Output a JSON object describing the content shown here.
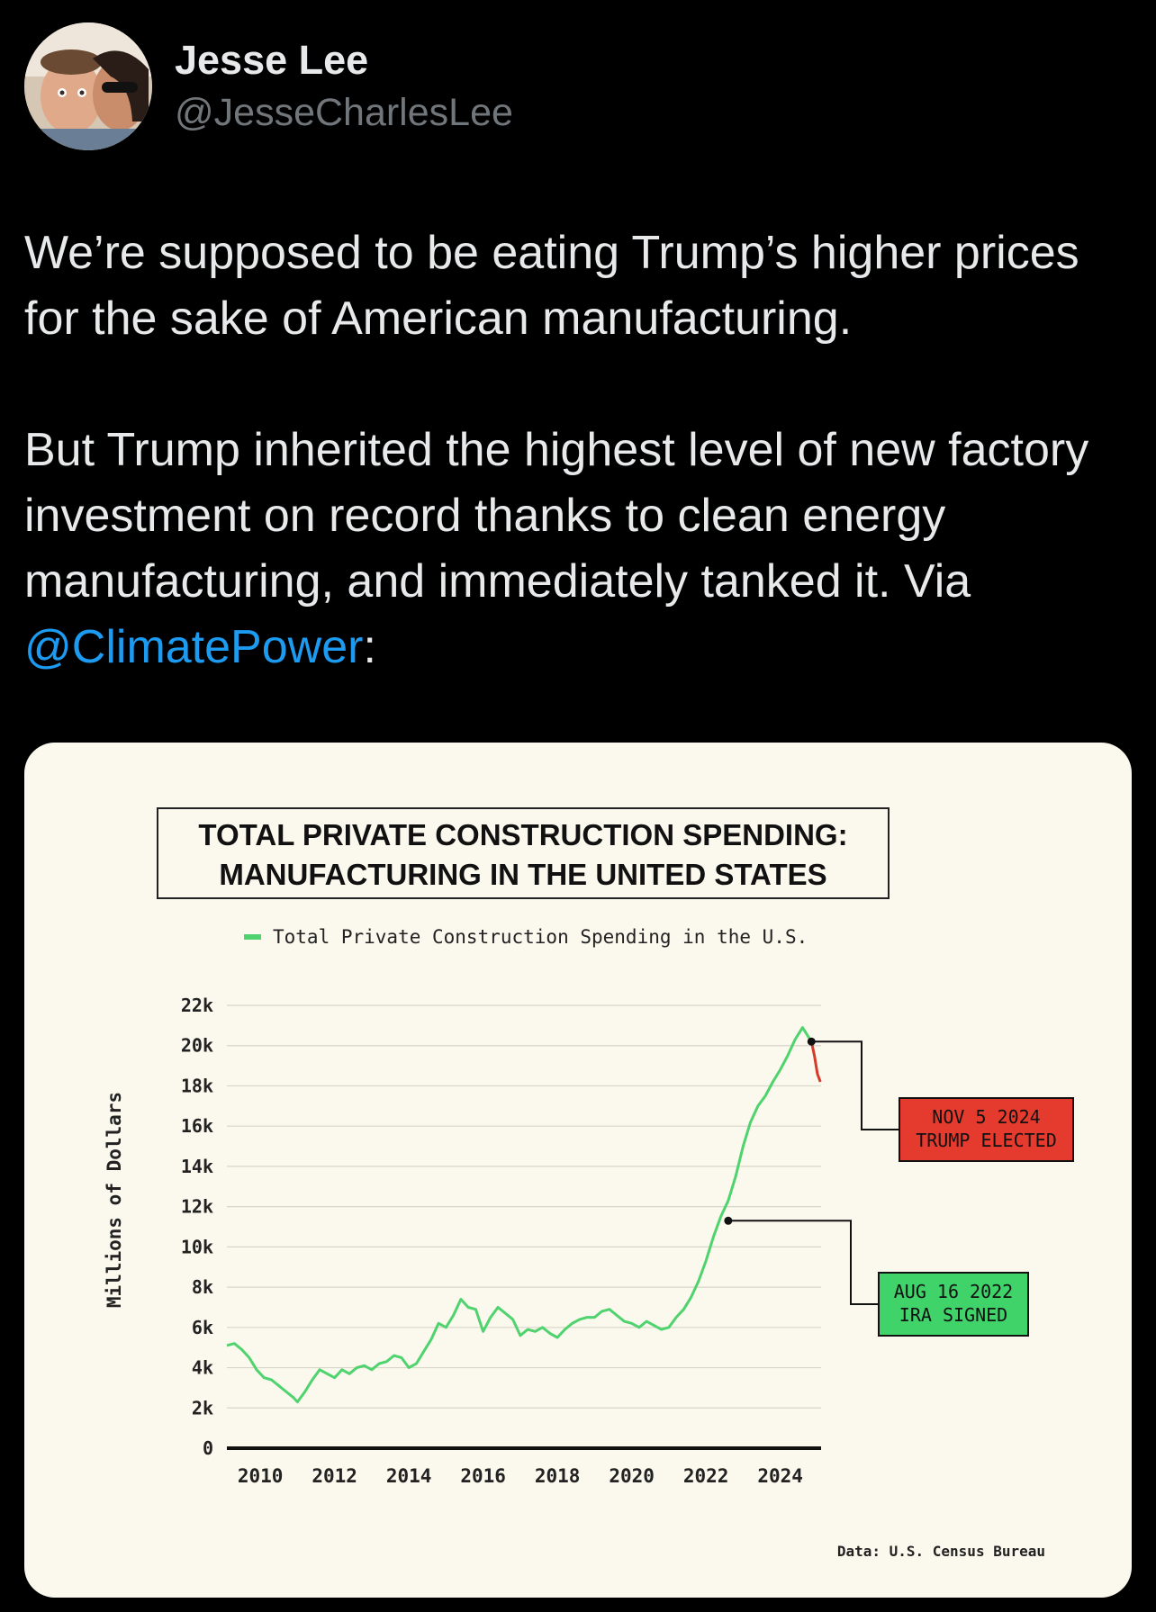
{
  "tweet": {
    "author": {
      "name": "Jesse Lee",
      "handle": "@JesseCharlesLee",
      "avatar_icon": "profile-photo-icon"
    },
    "text": {
      "paragraph1": "We’re supposed to be eating Trump’s higher prices for the sake of American manufacturing.",
      "paragraph2_before": "But Trump inherited the highest level of new factory investment on record thanks to clean energy manufacturing, and immediately tanked it. Via ",
      "mention": "@ClimatePower",
      "paragraph2_after": ":"
    }
  },
  "colors": {
    "background": "#000000",
    "text": "#e7e9ea",
    "muted": "#71767b",
    "link": "#1d9bf0",
    "card_bg": "#fbf8ed",
    "line_green": "#4fd36e",
    "line_red": "#d63a2a",
    "badge_red": "#e53a2e",
    "badge_green": "#3fd36a"
  },
  "chart_data": {
    "type": "line",
    "title_line1": "TOTAL PRIVATE CONSTRUCTION SPENDING:",
    "title_line2": "MANUFACTURING IN THE UNITED STATES",
    "legend": "Total Private Construction Spending in the U.S.",
    "ylabel": "Millions of Dollars",
    "source": "Data: U.S. Census Bureau",
    "y_ticks": [
      {
        "value": 0,
        "label": "0"
      },
      {
        "value": 2000,
        "label": "2k"
      },
      {
        "value": 4000,
        "label": "4k"
      },
      {
        "value": 6000,
        "label": "6k"
      },
      {
        "value": 8000,
        "label": "8k"
      },
      {
        "value": 10000,
        "label": "10k"
      },
      {
        "value": 12000,
        "label": "12k"
      },
      {
        "value": 14000,
        "label": "14k"
      },
      {
        "value": 16000,
        "label": "16k"
      },
      {
        "value": 18000,
        "label": "18k"
      },
      {
        "value": 20000,
        "label": "20k"
      },
      {
        "value": 22000,
        "label": "22k"
      }
    ],
    "x_ticks": [
      {
        "value": 2010,
        "label": "2010"
      },
      {
        "value": 2012,
        "label": "2012"
      },
      {
        "value": 2014,
        "label": "2014"
      },
      {
        "value": 2016,
        "label": "2016"
      },
      {
        "value": 2018,
        "label": "2018"
      },
      {
        "value": 2020,
        "label": "2020"
      },
      {
        "value": 2022,
        "label": "2022"
      },
      {
        "value": 2024,
        "label": "2024"
      }
    ],
    "xlim": [
      2009.1,
      2025.1
    ],
    "ylim": [
      0,
      22000
    ],
    "grid": true,
    "series": [
      {
        "name": "Total Private Construction Spending in the U.S.",
        "color": "green",
        "points": [
          [
            2009.1,
            5100
          ],
          [
            2009.3,
            5200
          ],
          [
            2009.5,
            4900
          ],
          [
            2009.7,
            4500
          ],
          [
            2009.9,
            3900
          ],
          [
            2010.1,
            3500
          ],
          [
            2010.3,
            3400
          ],
          [
            2010.5,
            3100
          ],
          [
            2010.7,
            2800
          ],
          [
            2010.9,
            2500
          ],
          [
            2011.0,
            2300
          ],
          [
            2011.2,
            2800
          ],
          [
            2011.4,
            3400
          ],
          [
            2011.6,
            3900
          ],
          [
            2011.8,
            3700
          ],
          [
            2012.0,
            3500
          ],
          [
            2012.2,
            3900
          ],
          [
            2012.4,
            3700
          ],
          [
            2012.6,
            4000
          ],
          [
            2012.8,
            4100
          ],
          [
            2013.0,
            3900
          ],
          [
            2013.2,
            4200
          ],
          [
            2013.4,
            4300
          ],
          [
            2013.6,
            4600
          ],
          [
            2013.8,
            4500
          ],
          [
            2014.0,
            4000
          ],
          [
            2014.2,
            4200
          ],
          [
            2014.4,
            4800
          ],
          [
            2014.6,
            5400
          ],
          [
            2014.8,
            6200
          ],
          [
            2015.0,
            6000
          ],
          [
            2015.2,
            6600
          ],
          [
            2015.4,
            7400
          ],
          [
            2015.6,
            7000
          ],
          [
            2015.8,
            6900
          ],
          [
            2016.0,
            5800
          ],
          [
            2016.2,
            6500
          ],
          [
            2016.4,
            7000
          ],
          [
            2016.6,
            6700
          ],
          [
            2016.8,
            6400
          ],
          [
            2017.0,
            5600
          ],
          [
            2017.2,
            5900
          ],
          [
            2017.4,
            5800
          ],
          [
            2017.6,
            6000
          ],
          [
            2017.8,
            5700
          ],
          [
            2018.0,
            5500
          ],
          [
            2018.2,
            5900
          ],
          [
            2018.4,
            6200
          ],
          [
            2018.6,
            6400
          ],
          [
            2018.8,
            6500
          ],
          [
            2019.0,
            6500
          ],
          [
            2019.2,
            6800
          ],
          [
            2019.4,
            6900
          ],
          [
            2019.6,
            6600
          ],
          [
            2019.8,
            6300
          ],
          [
            2020.0,
            6200
          ],
          [
            2020.2,
            6000
          ],
          [
            2020.4,
            6300
          ],
          [
            2020.6,
            6100
          ],
          [
            2020.8,
            5900
          ],
          [
            2021.0,
            6000
          ],
          [
            2021.2,
            6500
          ],
          [
            2021.4,
            6900
          ],
          [
            2021.6,
            7500
          ],
          [
            2021.8,
            8300
          ],
          [
            2022.0,
            9300
          ],
          [
            2022.2,
            10500
          ],
          [
            2022.4,
            11500
          ],
          [
            2022.6,
            12300
          ],
          [
            2022.8,
            13500
          ],
          [
            2023.0,
            15000
          ],
          [
            2023.2,
            16200
          ],
          [
            2023.4,
            17000
          ],
          [
            2023.6,
            17500
          ],
          [
            2023.8,
            18200
          ],
          [
            2024.0,
            18800
          ],
          [
            2024.2,
            19500
          ],
          [
            2024.4,
            20300
          ],
          [
            2024.6,
            20900
          ],
          [
            2024.84,
            20200
          ]
        ]
      },
      {
        "name": "Post-election",
        "color": "red",
        "points": [
          [
            2024.84,
            20200
          ],
          [
            2024.92,
            19500
          ],
          [
            2025.0,
            18600
          ],
          [
            2025.08,
            18200
          ]
        ]
      }
    ],
    "annotations": [
      {
        "x": 2024.84,
        "y": 20200,
        "line1": "NOV 5 2024",
        "line2": "TRUMP ELECTED",
        "color": "red"
      },
      {
        "x": 2022.6,
        "y": 11300,
        "line1": "AUG 16 2022",
        "line2": "IRA SIGNED",
        "color": "green"
      }
    ]
  }
}
